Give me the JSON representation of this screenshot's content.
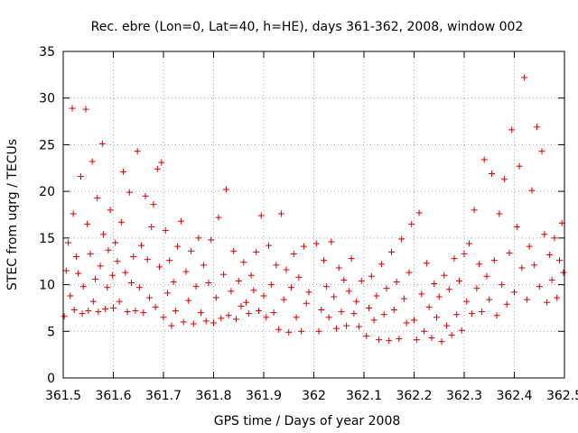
{
  "chart_data": {
    "type": "scatter",
    "title": "Rec. ebre (Lon=0, Lat=40, h=HE), days 361-362, 2008, window 002",
    "xlabel": "GPS time / Days of year 2008",
    "ylabel": "STEC from uqrg / TECUs",
    "xlim": [
      361.5,
      362.5
    ],
    "ylim": [
      0,
      35
    ],
    "x_ticks": [
      361.5,
      361.6,
      361.7,
      361.8,
      361.9,
      362,
      362.1,
      362.2,
      362.3,
      362.4,
      362.5
    ],
    "x_tick_labels": [
      "361.5",
      "361.6",
      "361.7",
      "361.8",
      "361.9",
      "362",
      "362.1",
      "362.2",
      "362.3",
      "362.4",
      "362.5"
    ],
    "y_ticks": [
      0,
      5,
      10,
      15,
      20,
      25,
      30,
      35
    ],
    "y_tick_labels": [
      "0",
      "5",
      "10",
      "15",
      "20",
      "25",
      "30",
      "35"
    ],
    "grid": true,
    "marker_color": "#d40000",
    "series": [
      {
        "points": [
          [
            361.502,
            6.6
          ],
          [
            361.506,
            11.5
          ],
          [
            361.51,
            14.5
          ],
          [
            361.514,
            8.8
          ],
          [
            361.518,
            28.9
          ],
          [
            361.52,
            17.6
          ],
          [
            361.522,
            7.3
          ],
          [
            361.526,
            13.0
          ],
          [
            361.53,
            11.2
          ],
          [
            361.535,
            21.6
          ],
          [
            361.538,
            6.9
          ],
          [
            361.54,
            9.8
          ],
          [
            361.545,
            28.8
          ],
          [
            361.548,
            16.5
          ],
          [
            361.55,
            7.2
          ],
          [
            361.554,
            13.3
          ],
          [
            361.558,
            23.2
          ],
          [
            361.56,
            8.2
          ],
          [
            361.564,
            10.6
          ],
          [
            361.568,
            19.3
          ],
          [
            361.57,
            7.1
          ],
          [
            361.574,
            12.0
          ],
          [
            361.578,
            25.1
          ],
          [
            361.58,
            15.4
          ],
          [
            361.584,
            7.4
          ],
          [
            361.588,
            9.7
          ],
          [
            361.59,
            13.7
          ],
          [
            361.594,
            18.0
          ],
          [
            361.598,
            11.0
          ],
          [
            361.6,
            7.5
          ],
          [
            361.604,
            14.5
          ],
          [
            361.608,
            12.5
          ],
          [
            361.612,
            8.2
          ],
          [
            361.616,
            16.7
          ],
          [
            361.62,
            22.1
          ],
          [
            361.624,
            11.3
          ],
          [
            361.628,
            7.1
          ],
          [
            361.632,
            19.9
          ],
          [
            361.636,
            10.2
          ],
          [
            361.64,
            13.0
          ],
          [
            361.644,
            7.2
          ],
          [
            361.648,
            24.3
          ],
          [
            361.652,
            9.7
          ],
          [
            361.656,
            14.2
          ],
          [
            361.66,
            7.0
          ],
          [
            361.664,
            19.5
          ],
          [
            361.668,
            12.7
          ],
          [
            361.672,
            8.6
          ],
          [
            361.676,
            16.2
          ],
          [
            361.68,
            18.6
          ],
          [
            361.684,
            7.6
          ],
          [
            361.688,
            22.4
          ],
          [
            361.692,
            11.9
          ],
          [
            361.696,
            23.1
          ],
          [
            361.7,
            6.5
          ],
          [
            361.704,
            15.8
          ],
          [
            361.708,
            9.1
          ],
          [
            361.712,
            12.6
          ],
          [
            361.716,
            5.6
          ],
          [
            361.72,
            10.3
          ],
          [
            361.724,
            7.2
          ],
          [
            361.728,
            14.1
          ],
          [
            361.735,
            16.8
          ],
          [
            361.74,
            6.0
          ],
          [
            361.745,
            11.4
          ],
          [
            361.75,
            8.3
          ],
          [
            361.755,
            13.6
          ],
          [
            361.76,
            5.8
          ],
          [
            361.765,
            9.8
          ],
          [
            361.77,
            15.0
          ],
          [
            361.775,
            7.0
          ],
          [
            361.78,
            12.1
          ],
          [
            361.785,
            6.1
          ],
          [
            361.79,
            10.2
          ],
          [
            361.795,
            14.8
          ],
          [
            361.8,
            5.9
          ],
          [
            361.805,
            8.6
          ],
          [
            361.81,
            17.2
          ],
          [
            361.815,
            6.4
          ],
          [
            361.82,
            11.1
          ],
          [
            361.825,
            20.2
          ],
          [
            361.83,
            6.7
          ],
          [
            361.835,
            9.3
          ],
          [
            361.84,
            13.6
          ],
          [
            361.845,
            6.3
          ],
          [
            361.85,
            10.4
          ],
          [
            361.855,
            7.7
          ],
          [
            361.86,
            12.4
          ],
          [
            361.865,
            8.1
          ],
          [
            361.87,
            6.9
          ],
          [
            361.875,
            11.0
          ],
          [
            361.88,
            9.4
          ],
          [
            361.885,
            13.5
          ],
          [
            361.89,
            7.2
          ],
          [
            361.895,
            17.4
          ],
          [
            361.9,
            8.8
          ],
          [
            361.905,
            6.5
          ],
          [
            361.91,
            14.2
          ],
          [
            361.915,
            10.0
          ],
          [
            361.92,
            7.0
          ],
          [
            361.925,
            12.1
          ],
          [
            361.93,
            5.2
          ],
          [
            361.935,
            17.6
          ],
          [
            361.94,
            8.4
          ],
          [
            361.945,
            11.6
          ],
          [
            361.95,
            4.9
          ],
          [
            361.955,
            9.7
          ],
          [
            361.96,
            13.3
          ],
          [
            361.965,
            6.5
          ],
          [
            361.97,
            10.8
          ],
          [
            361.975,
            5.0
          ],
          [
            361.98,
            14.1
          ],
          [
            361.985,
            8.0
          ],
          [
            361.99,
            9.2
          ],
          [
            362.005,
            14.4
          ],
          [
            362.01,
            5.0
          ],
          [
            362.015,
            7.3
          ],
          [
            362.02,
            12.6
          ],
          [
            362.025,
            9.8
          ],
          [
            362.03,
            6.5
          ],
          [
            362.035,
            14.6
          ],
          [
            362.04,
            8.7
          ],
          [
            362.045,
            5.3
          ],
          [
            362.05,
            11.8
          ],
          [
            362.055,
            7.1
          ],
          [
            362.06,
            10.5
          ],
          [
            362.065,
            5.6
          ],
          [
            362.07,
            9.3
          ],
          [
            362.075,
            12.8
          ],
          [
            362.08,
            6.9
          ],
          [
            362.085,
            8.2
          ],
          [
            362.09,
            5.5
          ],
          [
            362.095,
            10.4
          ],
          [
            362.105,
            4.5
          ],
          [
            362.11,
            7.5
          ],
          [
            362.115,
            10.9
          ],
          [
            362.12,
            6.2
          ],
          [
            362.125,
            8.8
          ],
          [
            362.13,
            4.1
          ],
          [
            362.135,
            12.2
          ],
          [
            362.14,
            6.8
          ],
          [
            362.145,
            9.6
          ],
          [
            362.15,
            4.0
          ],
          [
            362.155,
            13.5
          ],
          [
            362.16,
            7.3
          ],
          [
            362.165,
            10.3
          ],
          [
            362.17,
            4.2
          ],
          [
            362.175,
            14.9
          ],
          [
            362.18,
            8.5
          ],
          [
            362.185,
            5.9
          ],
          [
            362.19,
            11.3
          ],
          [
            362.195,
            16.5
          ],
          [
            362.2,
            6.2
          ],
          [
            362.205,
            4.1
          ],
          [
            362.21,
            17.7
          ],
          [
            362.215,
            9.0
          ],
          [
            362.22,
            5.0
          ],
          [
            362.225,
            12.3
          ],
          [
            362.23,
            7.6
          ],
          [
            362.235,
            4.3
          ],
          [
            362.24,
            10.1
          ],
          [
            362.245,
            6.5
          ],
          [
            362.25,
            8.7
          ],
          [
            362.255,
            3.9
          ],
          [
            362.26,
            11.0
          ],
          [
            362.265,
            5.6
          ],
          [
            362.27,
            9.5
          ],
          [
            362.275,
            4.6
          ],
          [
            362.28,
            12.8
          ],
          [
            362.285,
            6.8
          ],
          [
            362.29,
            10.4
          ],
          [
            362.295,
            5.1
          ],
          [
            362.3,
            13.3
          ],
          [
            362.305,
            8.2
          ],
          [
            362.31,
            14.4
          ],
          [
            362.315,
            6.9
          ],
          [
            362.32,
            18.0
          ],
          [
            362.325,
            9.6
          ],
          [
            362.33,
            12.2
          ],
          [
            362.335,
            7.1
          ],
          [
            362.34,
            23.4
          ],
          [
            362.345,
            10.9
          ],
          [
            362.35,
            8.4
          ],
          [
            362.355,
            21.9
          ],
          [
            362.36,
            12.6
          ],
          [
            362.365,
            6.7
          ],
          [
            362.37,
            17.6
          ],
          [
            362.375,
            10.0
          ],
          [
            362.38,
            21.3
          ],
          [
            362.385,
            7.9
          ],
          [
            362.39,
            13.4
          ],
          [
            362.395,
            26.6
          ],
          [
            362.4,
            9.2
          ],
          [
            362.405,
            16.2
          ],
          [
            362.41,
            22.7
          ],
          [
            362.415,
            11.8
          ],
          [
            362.42,
            32.2
          ],
          [
            362.425,
            8.4
          ],
          [
            362.43,
            14.1
          ],
          [
            362.435,
            20.1
          ],
          [
            362.44,
            12.1
          ],
          [
            362.445,
            26.9
          ],
          [
            362.45,
            9.8
          ],
          [
            362.455,
            24.3
          ],
          [
            362.46,
            15.4
          ],
          [
            362.465,
            8.1
          ],
          [
            362.47,
            13.2
          ],
          [
            362.475,
            10.5
          ],
          [
            362.48,
            15.0
          ],
          [
            362.485,
            8.6
          ],
          [
            362.49,
            12.6
          ],
          [
            362.495,
            16.6
          ],
          [
            362.498,
            11.3
          ]
        ]
      }
    ]
  }
}
